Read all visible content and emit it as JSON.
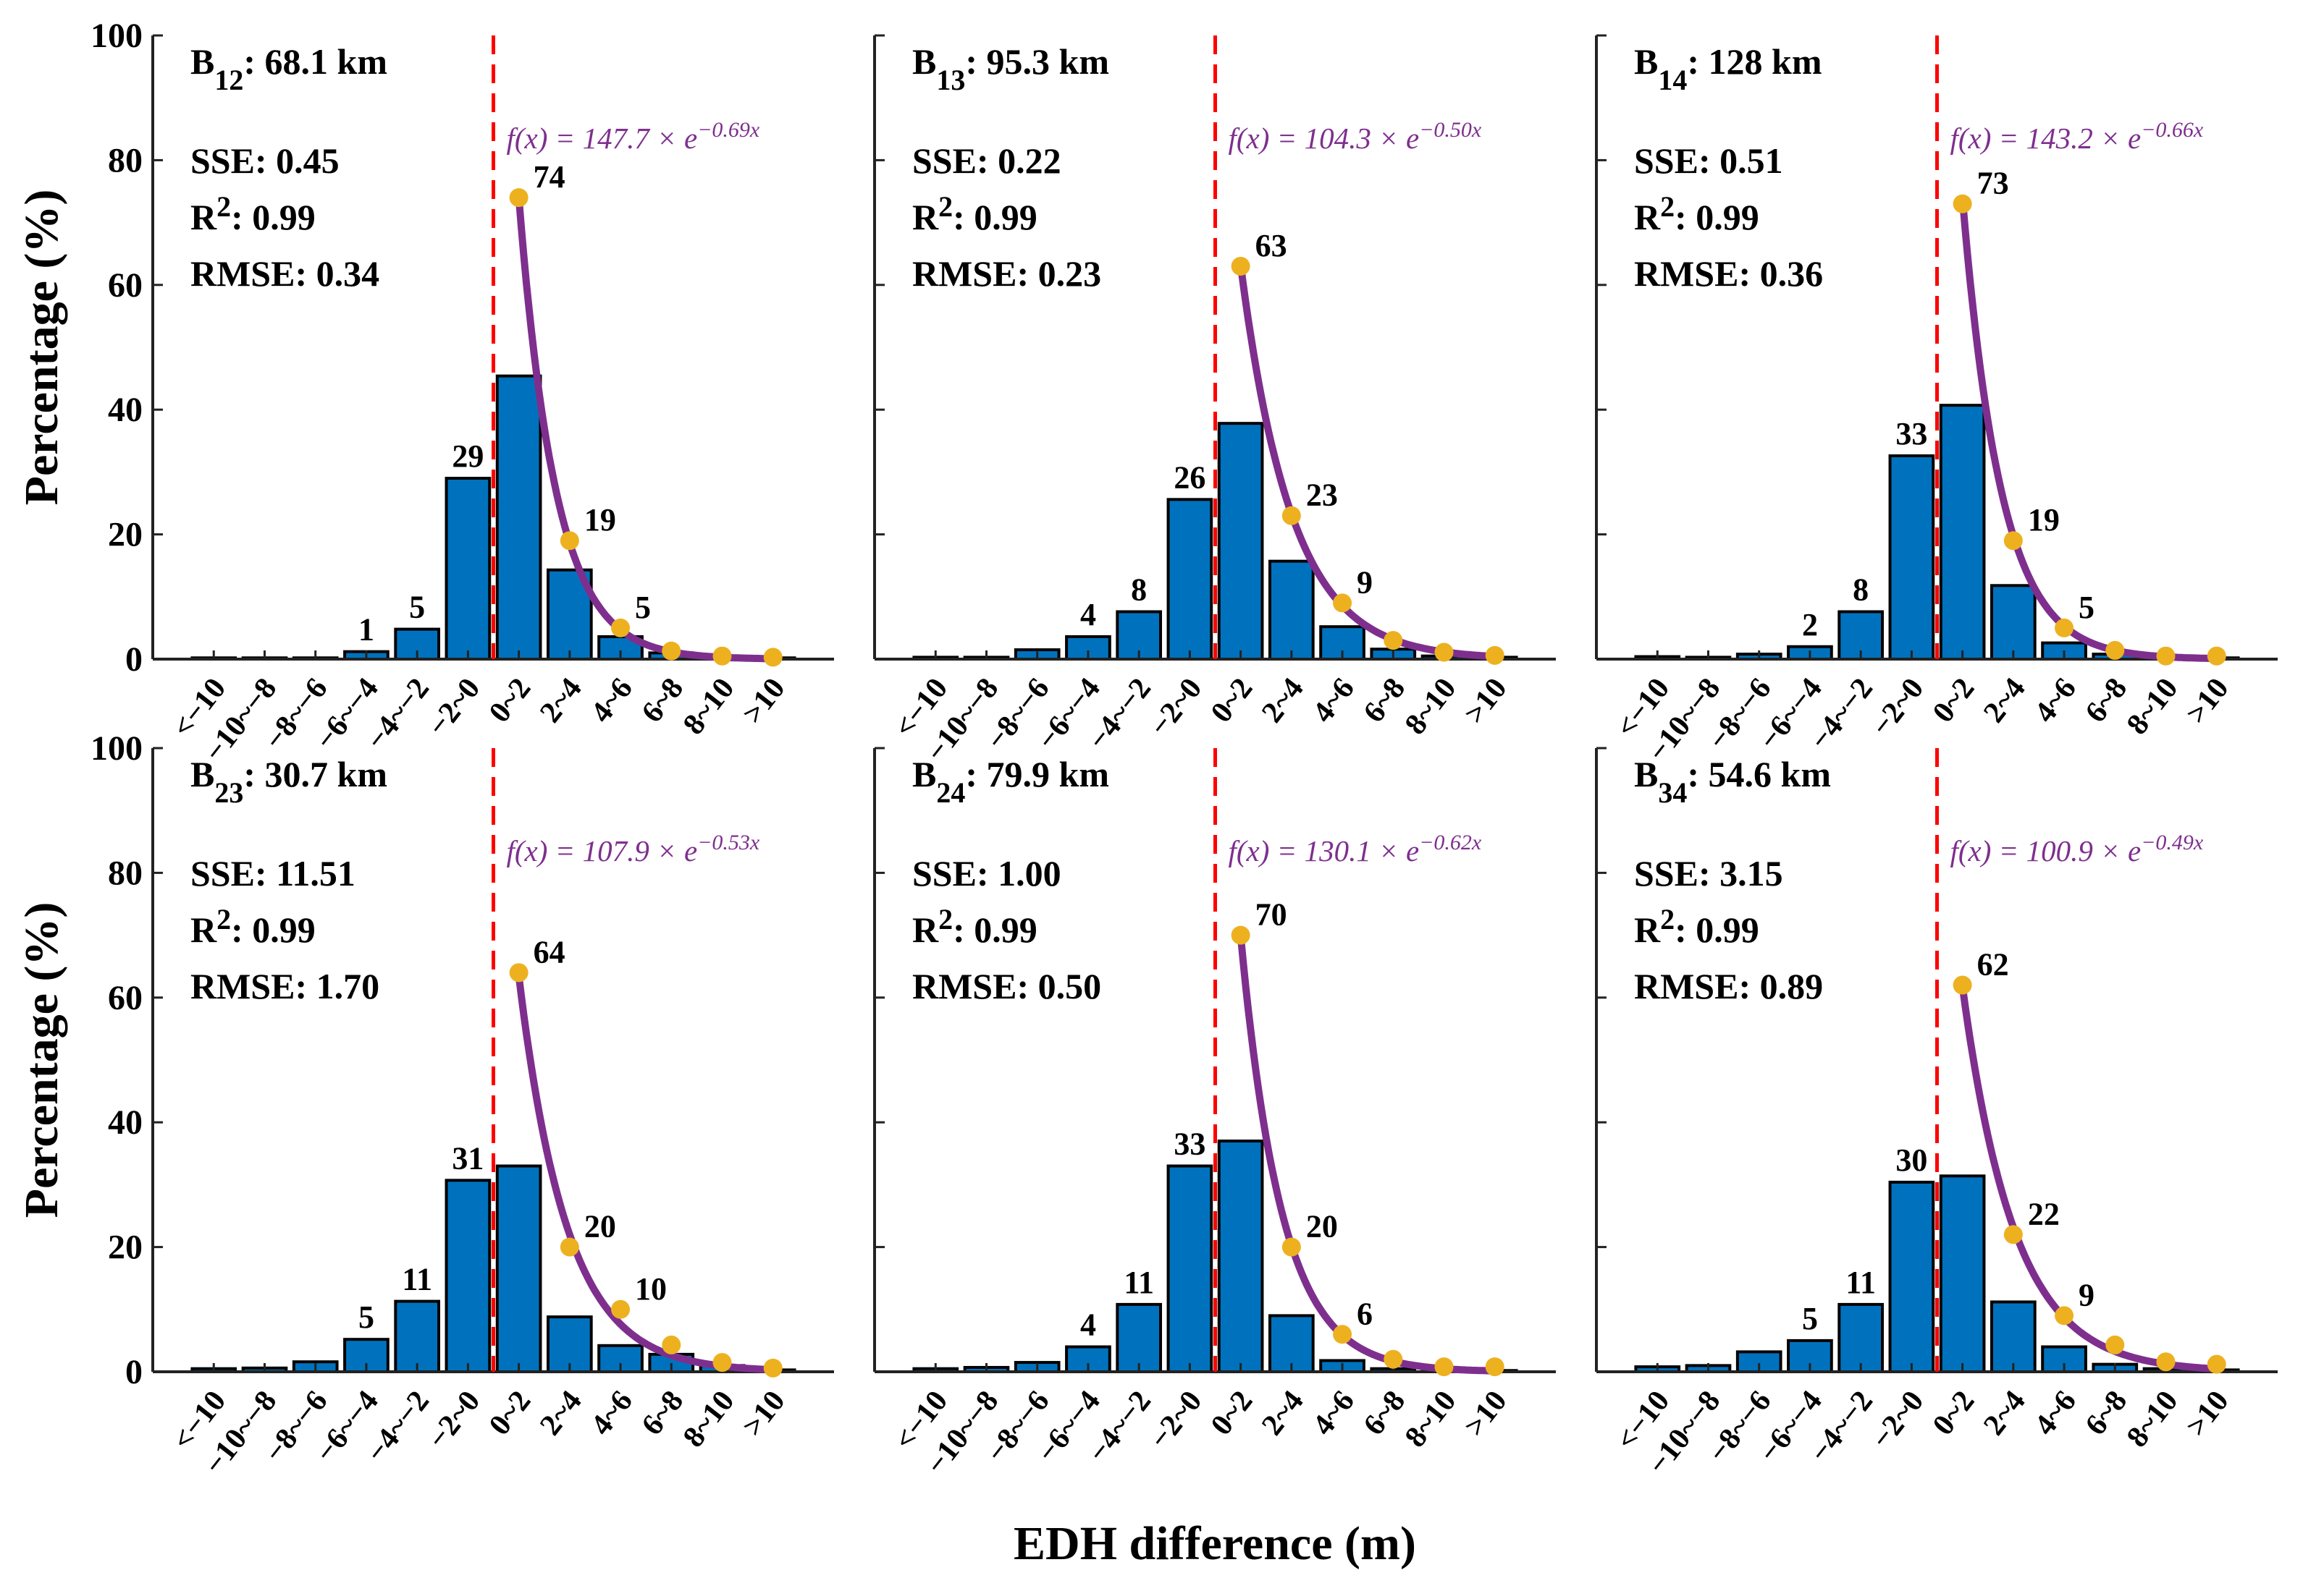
{
  "chart_data": {
    "type": "bar",
    "title": "",
    "xlabel": "EDH difference (m)",
    "ylabel": "Percentage (%)",
    "ylim": [
      0,
      100
    ],
    "yticks": [
      "0",
      "20",
      "40",
      "60",
      "80",
      "100"
    ],
    "grid": false,
    "categories": [
      "<−10",
      "−10~−8",
      "−8~−6",
      "−6~−4",
      "−4~−2",
      "−2~0",
      "0~2",
      "2~4",
      "4~6",
      "6~8",
      "8~10",
      ">10"
    ],
    "colors": {
      "bar": "#0072BD",
      "fit": "#7E2F8E",
      "points": "#EDB120",
      "divider": "#FF0000"
    },
    "panels": [
      {
        "b": "B",
        "b_sub": "12",
        "b_value": ": 68.1 km",
        "sse": "SSE: 0.45",
        "r2_prefix": "R",
        "r2_sup": "2",
        "r2_value": ": 0.99",
        "rmse": "RMSE: 0.34",
        "eq_left": "f(x) = 147.7 × e",
        "eq_exp": "−0.69x",
        "fit_a": 147.7,
        "fit_b": 0.69,
        "values": [
          0.2,
          0.2,
          0.2,
          1.2,
          4.8,
          29,
          45.4,
          14.3,
          3.6,
          1.0,
          0.3,
          0.2
        ],
        "bar_labels": [
          null,
          null,
          null,
          "1",
          "5",
          "29",
          null,
          null,
          null,
          null,
          null,
          null
        ],
        "points": [
          74,
          19,
          5,
          1.3,
          0.5,
          0.3
        ],
        "point_labels": [
          "74",
          "19",
          "5",
          null,
          null,
          null
        ]
      },
      {
        "b": "B",
        "b_sub": "13",
        "b_value": ": 95.3 km",
        "sse": "SSE: 0.22",
        "r2_prefix": "R",
        "r2_sup": "2",
        "r2_value": ": 0.99",
        "rmse": "RMSE: 0.23",
        "eq_left": "f(x) = 104.3 × e",
        "eq_exp": "−0.50x",
        "fit_a": 104.3,
        "fit_b": 0.5,
        "values": [
          0.3,
          0.3,
          1.5,
          3.6,
          7.6,
          25.6,
          37.8,
          15.7,
          5.2,
          1.6,
          0.5,
          0.3
        ],
        "bar_labels": [
          null,
          null,
          null,
          "4",
          "8",
          "26",
          null,
          null,
          null,
          null,
          null,
          null
        ],
        "points": [
          63,
          23,
          9,
          3,
          1.1,
          0.6
        ],
        "point_labels": [
          "63",
          "23",
          "9",
          null,
          null,
          null
        ]
      },
      {
        "b": "B",
        "b_sub": "14",
        "b_value": ": 128 km",
        "sse": "SSE: 0.51",
        "r2_prefix": "R",
        "r2_sup": "2",
        "r2_value": ": 0.99",
        "rmse": "RMSE: 0.36",
        "eq_left": "f(x) = 143.2 × e",
        "eq_exp": "−0.66x",
        "fit_a": 143.2,
        "fit_b": 0.66,
        "values": [
          0.4,
          0.3,
          0.8,
          2.0,
          7.6,
          32.6,
          40.7,
          11.8,
          2.6,
          0.8,
          0.3,
          0.2
        ],
        "bar_labels": [
          null,
          null,
          null,
          "2",
          "8",
          "33",
          null,
          null,
          null,
          null,
          null,
          null
        ],
        "points": [
          73,
          19,
          5,
          1.4,
          0.5,
          0.5
        ],
        "point_labels": [
          "73",
          "19",
          "5",
          null,
          null,
          null
        ]
      },
      {
        "b": "B",
        "b_sub": "23",
        "b_value": ": 30.7 km",
        "sse": "SSE: 11.51",
        "r2_prefix": "R",
        "r2_sup": "2",
        "r2_value": ": 0.99",
        "rmse": "RMSE: 1.70",
        "eq_left": "f(x) = 107.9 × e",
        "eq_exp": "−0.53x",
        "fit_a": 107.9,
        "fit_b": 0.53,
        "values": [
          0.5,
          0.6,
          1.6,
          5.2,
          11.3,
          30.7,
          33.0,
          8.8,
          4.2,
          2.8,
          1.0,
          0.3
        ],
        "bar_labels": [
          null,
          null,
          null,
          "5",
          "11",
          "31",
          null,
          null,
          null,
          null,
          null,
          null
        ],
        "points": [
          64,
          20,
          10,
          4.3,
          1.5,
          0.6
        ],
        "point_labels": [
          "64",
          "20",
          "10",
          null,
          null,
          null
        ]
      },
      {
        "b": "B",
        "b_sub": "24",
        "b_value": ": 79.9 km",
        "sse": "SSE: 1.00",
        "r2_prefix": "R",
        "r2_sup": "2",
        "r2_value": ": 0.99",
        "rmse": "RMSE: 0.50",
        "eq_left": "f(x) = 130.1 × e",
        "eq_exp": "−0.62x",
        "fit_a": 130.1,
        "fit_b": 0.62,
        "values": [
          0.5,
          0.7,
          1.5,
          4.0,
          10.8,
          33.0,
          37.0,
          9.0,
          1.8,
          0.5,
          0.2,
          0.2
        ],
        "bar_labels": [
          null,
          null,
          null,
          "4",
          "11",
          "33",
          null,
          null,
          null,
          null,
          null,
          null
        ],
        "points": [
          70,
          20,
          6,
          2,
          0.8,
          0.8
        ],
        "point_labels": [
          "70",
          "20",
          "6",
          null,
          null,
          null
        ]
      },
      {
        "b": "B",
        "b_sub": "34",
        "b_value": ": 54.6 km",
        "sse": "SSE: 3.15",
        "r2_prefix": "R",
        "r2_sup": "2",
        "r2_value": ": 0.99",
        "rmse": "RMSE: 0.89",
        "eq_left": "f(x) = 100.9 × e",
        "eq_exp": "−0.49x",
        "fit_a": 100.9,
        "fit_b": 0.49,
        "values": [
          0.8,
          1.0,
          3.2,
          5.0,
          10.8,
          30.4,
          31.4,
          11.2,
          4.0,
          1.2,
          0.5,
          0.3
        ],
        "bar_labels": [
          null,
          null,
          null,
          "5",
          "11",
          "30",
          null,
          null,
          null,
          null,
          null,
          null
        ],
        "points": [
          62,
          22,
          9,
          4.3,
          1.6,
          1.2
        ],
        "point_labels": [
          "62",
          "22",
          "9",
          null,
          null,
          null
        ]
      }
    ]
  }
}
